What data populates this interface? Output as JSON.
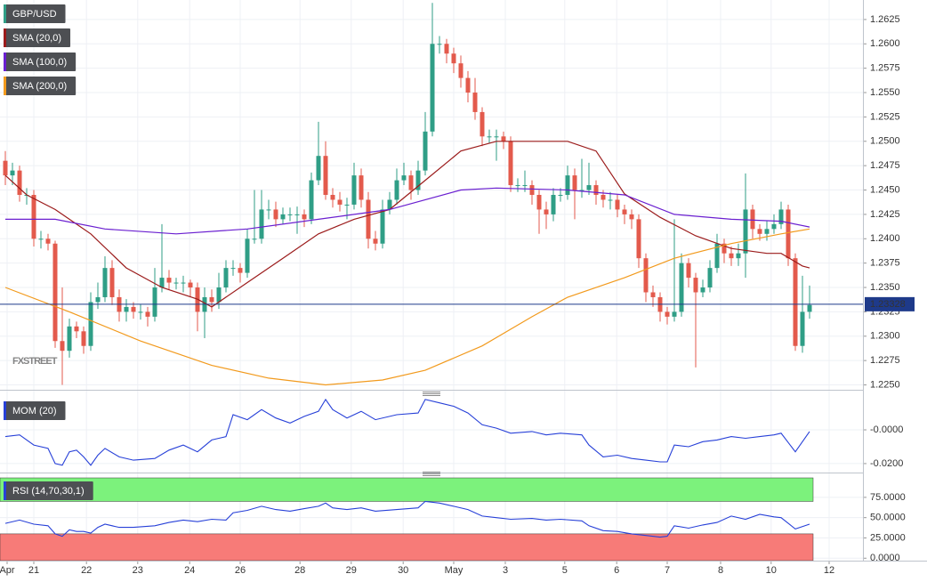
{
  "chart_data": [
    {
      "type": "candlestick",
      "title": "GBP/USD",
      "watermark": "FXSTREET",
      "open": [
        1.248,
        1.2465,
        1.247,
        1.2445,
        1.2445,
        1.24,
        1.24,
        1.2395,
        1.2295,
        1.2285,
        1.231,
        1.2305,
        1.229,
        1.2335,
        1.234,
        1.237,
        1.234,
        1.2325,
        1.233,
        1.2325,
        1.2325,
        1.232,
        1.235,
        1.236,
        1.2355,
        1.2355,
        1.2355,
        1.235,
        1.2325,
        1.234,
        1.2335,
        1.235,
        1.237,
        1.237,
        1.2365,
        1.24,
        1.24,
        1.243,
        1.243,
        1.242,
        1.2425,
        1.2425,
        1.2425,
        1.242,
        1.246,
        1.2485,
        1.2445,
        1.244,
        1.2435,
        1.2435,
        1.2465,
        1.244,
        1.24,
        1.2395,
        1.243,
        1.244,
        1.246,
        1.2465,
        1.245,
        1.247,
        1.251,
        1.26,
        1.26,
        1.259,
        1.258,
        1.2565,
        1.255,
        1.253,
        1.2505,
        1.2505,
        1.2505,
        1.25,
        1.2455,
        1.2455,
        1.2455,
        1.2445,
        1.243,
        1.2425,
        1.2445,
        1.2445,
        1.2465,
        1.245,
        1.245,
        1.2455,
        1.2445,
        1.244,
        1.244,
        1.243,
        1.2425,
        1.242,
        1.238,
        1.2345,
        1.234,
        1.2325,
        1.232,
        1.2325,
        1.2375,
        1.236,
        1.2345,
        1.235,
        1.237,
        1.2395,
        1.2385,
        1.238,
        1.2385,
        1.243,
        1.241,
        1.2405,
        1.241,
        1.2415,
        1.243,
        1.238,
        1.229,
        1.2325
      ],
      "high": [
        1.249,
        1.2478,
        1.2475,
        1.2452,
        1.245,
        1.2408,
        1.2405,
        1.2398,
        1.235,
        1.2318,
        1.2315,
        1.231,
        1.2345,
        1.2355,
        1.2382,
        1.2378,
        1.2348,
        1.2338,
        1.2335,
        1.2333,
        1.233,
        1.237,
        1.2415,
        1.2368,
        1.236,
        1.2362,
        1.2358,
        1.2355,
        1.235,
        1.2348,
        1.2365,
        1.2378,
        1.2378,
        1.2375,
        1.241,
        1.245,
        1.245,
        1.244,
        1.2438,
        1.2432,
        1.2432,
        1.2433,
        1.243,
        1.2468,
        1.252,
        1.25,
        1.2452,
        1.2448,
        1.2442,
        1.2478,
        1.2472,
        1.2448,
        1.2408,
        1.244,
        1.2448,
        1.2472,
        1.2478,
        1.247,
        1.248,
        1.253,
        1.2642,
        1.2608,
        1.2605,
        1.2596,
        1.2588,
        1.2572,
        1.2565,
        1.2535,
        1.2512,
        1.2512,
        1.251,
        1.2505,
        1.2462,
        1.247,
        1.246,
        1.245,
        1.2438,
        1.2452,
        1.2452,
        1.2475,
        1.2472,
        1.2482,
        1.2478,
        1.246,
        1.245,
        1.2448,
        1.2445,
        1.2435,
        1.243,
        1.2425,
        1.2385,
        1.2352,
        1.2345,
        1.233,
        1.242,
        1.2385,
        1.238,
        1.2365,
        1.2358,
        1.2378,
        1.2405,
        1.24,
        1.2392,
        1.2395,
        1.2467,
        1.2435,
        1.2415,
        1.2418,
        1.2425,
        1.2438,
        1.2435,
        1.2385,
        1.2362,
        1.2352
      ],
      "low": [
        1.2455,
        1.2455,
        1.2438,
        1.2435,
        1.2392,
        1.239,
        1.2388,
        1.2288,
        1.225,
        1.2278,
        1.2298,
        1.2282,
        1.2285,
        1.2328,
        1.2335,
        1.2332,
        1.2315,
        1.2315,
        1.2318,
        1.2317,
        1.231,
        1.2315,
        1.2345,
        1.2348,
        1.2348,
        1.2345,
        1.234,
        1.2305,
        1.2298,
        1.2325,
        1.2328,
        1.2345,
        1.2362,
        1.2355,
        1.236,
        1.2395,
        1.2395,
        1.242,
        1.2412,
        1.2415,
        1.2418,
        1.2405,
        1.2412,
        1.2415,
        1.2455,
        1.244,
        1.2432,
        1.2428,
        1.242,
        1.243,
        1.2432,
        1.239,
        1.2388,
        1.239,
        1.2425,
        1.2435,
        1.2455,
        1.244,
        1.2445,
        1.2465,
        1.2505,
        1.259,
        1.258,
        1.257,
        1.2555,
        1.254,
        1.2522,
        1.2495,
        1.2498,
        1.248,
        1.2492,
        1.2448,
        1.2448,
        1.2448,
        1.2435,
        1.2405,
        1.241,
        1.2418,
        1.2438,
        1.244,
        1.242,
        1.2442,
        1.2445,
        1.2435,
        1.2432,
        1.243,
        1.2422,
        1.2415,
        1.241,
        1.237,
        1.2335,
        1.233,
        1.2315,
        1.2312,
        1.2315,
        1.232,
        1.235,
        1.2268,
        1.234,
        1.2345,
        1.2365,
        1.2375,
        1.2372,
        1.2372,
        1.236,
        1.24,
        1.2398,
        1.2398,
        1.2405,
        1.241,
        1.2372,
        1.2285,
        1.2283,
        1.2318
      ],
      "close": [
        1.2465,
        1.247,
        1.2445,
        1.2445,
        1.24,
        1.24,
        1.2395,
        1.2295,
        1.2285,
        1.231,
        1.2305,
        1.229,
        1.2335,
        1.234,
        1.237,
        1.234,
        1.2325,
        1.233,
        1.2325,
        1.2325,
        1.232,
        1.235,
        1.236,
        1.2355,
        1.2355,
        1.2355,
        1.235,
        1.2325,
        1.234,
        1.2335,
        1.235,
        1.237,
        1.237,
        1.2365,
        1.24,
        1.24,
        1.243,
        1.243,
        1.242,
        1.2425,
        1.2425,
        1.2425,
        1.242,
        1.246,
        1.2485,
        1.2445,
        1.244,
        1.2435,
        1.2435,
        1.2465,
        1.244,
        1.24,
        1.2395,
        1.243,
        1.244,
        1.246,
        1.2465,
        1.245,
        1.247,
        1.251,
        1.26,
        1.26,
        1.259,
        1.258,
        1.2565,
        1.255,
        1.253,
        1.2505,
        1.2505,
        1.2505,
        1.25,
        1.2455,
        1.2455,
        1.2455,
        1.2445,
        1.243,
        1.2425,
        1.2445,
        1.2445,
        1.2465,
        1.245,
        1.245,
        1.2455,
        1.2445,
        1.244,
        1.244,
        1.243,
        1.2425,
        1.242,
        1.238,
        1.2345,
        1.234,
        1.2325,
        1.232,
        1.2325,
        1.2375,
        1.236,
        1.2345,
        1.235,
        1.237,
        1.2395,
        1.2385,
        1.238,
        1.2385,
        1.243,
        1.241,
        1.2405,
        1.241,
        1.2415,
        1.243,
        1.238,
        1.229,
        1.2325,
        1.2332
      ],
      "up_color": "#2f9e86",
      "down_color": "#e35a4c",
      "overlays": [
        {
          "name": "SMA (20,0)",
          "color": "#9b1b1b",
          "x": [
            0,
            3,
            7,
            12,
            17,
            22,
            27,
            29,
            34,
            39,
            44,
            49,
            54,
            59,
            64,
            69,
            74,
            79,
            83,
            87,
            92,
            97,
            102,
            107,
            109,
            112,
            113
          ],
          "values": [
            1.2465,
            1.2445,
            1.243,
            1.2405,
            1.237,
            1.235,
            1.2338,
            1.233,
            1.2355,
            1.238,
            1.2405,
            1.242,
            1.243,
            1.246,
            1.249,
            1.25,
            1.25,
            1.25,
            1.249,
            1.2446,
            1.2422,
            1.2403,
            1.239,
            1.2385,
            1.2385,
            1.2372,
            1.237
          ]
        },
        {
          "name": "SMA (100,0)",
          "color": "#6a1fd0",
          "x": [
            0,
            7,
            14,
            24,
            34,
            44,
            54,
            64,
            69,
            79,
            87,
            94,
            102,
            109,
            113
          ],
          "values": [
            1.242,
            1.242,
            1.241,
            1.2405,
            1.241,
            1.242,
            1.243,
            1.245,
            1.2452,
            1.245,
            1.2445,
            1.2425,
            1.242,
            1.2418,
            1.2412
          ]
        },
        {
          "name": "SMA (200,0)",
          "color": "#f29a1d",
          "x": [
            0,
            9,
            19,
            29,
            37,
            45,
            53,
            59,
            67,
            74,
            79,
            87,
            94,
            102,
            109,
            113
          ],
          "values": [
            1.235,
            1.2325,
            1.2295,
            1.227,
            1.2257,
            1.225,
            1.2255,
            1.2265,
            1.229,
            1.232,
            1.234,
            1.236,
            1.238,
            1.2395,
            1.2405,
            1.241
          ]
        }
      ],
      "last_price": 1.23328,
      "last_price_color": "#1e3a8a",
      "xlim": [
        -0.75,
        120.5
      ],
      "xticks": [
        {
          "value": 0.25,
          "label": "Apr"
        },
        {
          "value": 4,
          "label": "21"
        },
        {
          "value": 11.4,
          "label": "22"
        },
        {
          "value": 18.6,
          "label": "23"
        },
        {
          "value": 25.9,
          "label": "24"
        },
        {
          "value": 33,
          "label": "26"
        },
        {
          "value": 41.4,
          "label": "28"
        },
        {
          "value": 48.6,
          "label": "29"
        },
        {
          "value": 55.9,
          "label": "30"
        },
        {
          "value": 63,
          "label": "May"
        },
        {
          "value": 70.25,
          "label": "3"
        },
        {
          "value": 78.6,
          "label": "5"
        },
        {
          "value": 85.9,
          "label": "6"
        },
        {
          "value": 93,
          "label": "7"
        },
        {
          "value": 100.5,
          "label": "8"
        },
        {
          "value": 107.6,
          "label": "10"
        },
        {
          "value": 115.75,
          "label": "12"
        }
      ],
      "ylim": [
        1.2245,
        1.2645
      ],
      "yticks": [
        {
          "value": 1.225,
          "label": "1.2250"
        },
        1.2275,
        {
          "value": 1.23,
          "label": "1.2300"
        },
        1.2325,
        {
          "value": 1.235,
          "label": "1.2350"
        },
        1.2375,
        {
          "value": 1.24,
          "label": "1.2400"
        },
        1.2425,
        {
          "value": 1.245,
          "label": "1.2450"
        },
        1.2475,
        {
          "value": 1.25,
          "label": "1.2500"
        },
        1.2525,
        {
          "value": 1.255,
          "label": "1.2550"
        },
        1.2575,
        {
          "value": 1.26,
          "label": "1.2600"
        },
        1.2625
      ],
      "grid": true
    },
    {
      "type": "line",
      "series": [
        {
          "name": "MOM (20)",
          "color": "#2740d8",
          "x": [
            0,
            2,
            4,
            6,
            7,
            8,
            9,
            10,
            11,
            12,
            13,
            14,
            16,
            18,
            21,
            23,
            25,
            27,
            29,
            30,
            31,
            32,
            34,
            36,
            38,
            40,
            42,
            44,
            45,
            46,
            48,
            50,
            52,
            55,
            58,
            59,
            61,
            63,
            65,
            67,
            69,
            71,
            74,
            76,
            78,
            81,
            82,
            84,
            86,
            88,
            90,
            92,
            93,
            94,
            96,
            98,
            100,
            102,
            104,
            106,
            108,
            109,
            111,
            113
          ],
          "values": [
            -0.004,
            -0.003,
            -0.009,
            -0.011,
            -0.02,
            -0.021,
            -0.013,
            -0.012,
            -0.016,
            -0.021,
            -0.015,
            -0.011,
            -0.016,
            -0.018,
            -0.017,
            -0.012,
            -0.009,
            -0.013,
            -0.006,
            -0.005,
            -0.004,
            0.009,
            0.006,
            0.012,
            0.007,
            0.004,
            0.008,
            0.011,
            0.018,
            0.012,
            0.007,
            0.011,
            0.006,
            0.009,
            0.01,
            0.018,
            0.016,
            0.014,
            0.01,
            0.003,
            0.001,
            -0.002,
            -0.001,
            -0.003,
            -0.002,
            -0.003,
            -0.009,
            -0.016,
            -0.015,
            -0.017,
            -0.018,
            -0.019,
            -0.019,
            -0.009,
            -0.01,
            -0.007,
            -0.006,
            -0.004,
            -0.005,
            -0.004,
            -0.003,
            -0.002,
            -0.013,
            -0.001
          ]
        }
      ],
      "xlim": [
        -0.75,
        120.5
      ],
      "ylim": [
        -0.0232,
        0.019
      ],
      "yticks": [
        {
          "value": 0,
          "label": "-0.0000"
        },
        {
          "value": -0.02,
          "label": "-0.0200"
        }
      ],
      "grid": true
    },
    {
      "type": "line",
      "series": [
        {
          "name": "RSI (14,70,30,1)",
          "color": "#2740d8",
          "x": [
            0,
            2,
            4,
            6,
            7,
            8,
            9,
            10,
            11,
            12,
            13,
            14,
            16,
            18,
            21,
            23,
            25,
            27,
            29,
            31,
            32,
            34,
            36,
            38,
            40,
            42,
            44,
            45,
            46,
            48,
            50,
            52,
            55,
            58,
            59,
            61,
            63,
            65,
            67,
            69,
            71,
            74,
            76,
            78,
            81,
            82,
            84,
            86,
            88,
            90,
            92,
            93,
            94,
            96,
            98,
            100,
            102,
            104,
            106,
            108,
            109,
            111,
            113
          ],
          "values": [
            43,
            47,
            42,
            40,
            30,
            27,
            35,
            33,
            33,
            31,
            38,
            42,
            38,
            38,
            40,
            44,
            47,
            45,
            48,
            47,
            56,
            59,
            64,
            60,
            58,
            61,
            64,
            68,
            62,
            60,
            62,
            58,
            60,
            62,
            70,
            68,
            64,
            60,
            52,
            50,
            48,
            49,
            47,
            48,
            46,
            40,
            34,
            33,
            30,
            28,
            26,
            27,
            40,
            37,
            41,
            44,
            52,
            48,
            54,
            51,
            50,
            36,
            42
          ]
        }
      ],
      "overbought": 70,
      "oversold": 30,
      "overbought_color": "#7cf27c",
      "oversold_color": "#f77b78",
      "xlim": [
        -0.75,
        120.5
      ],
      "ylim": [
        -3,
        99
      ],
      "yticks": [
        {
          "value": 0,
          "label": "0.0000"
        },
        {
          "value": 25,
          "label": "25.0000"
        },
        {
          "value": 50,
          "label": "50.0000"
        },
        {
          "value": 75,
          "label": "75.0000"
        }
      ],
      "grid": true
    }
  ]
}
